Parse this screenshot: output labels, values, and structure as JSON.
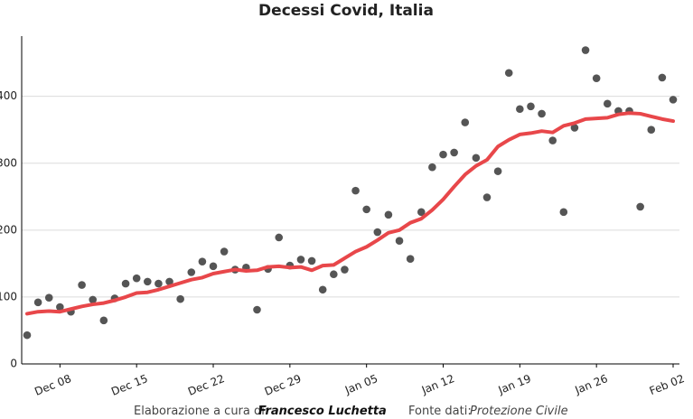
{
  "chart_data": {
    "type": "line",
    "title": "Decessi Covid, Italia",
    "x": [
      "Dec 05",
      "Dec 06",
      "Dec 07",
      "Dec 08",
      "Dec 09",
      "Dec 10",
      "Dec 11",
      "Dec 12",
      "Dec 13",
      "Dec 14",
      "Dec 15",
      "Dec 16",
      "Dec 17",
      "Dec 18",
      "Dec 19",
      "Dec 20",
      "Dec 21",
      "Dec 22",
      "Dec 23",
      "Dec 24",
      "Dec 25",
      "Dec 26",
      "Dec 27",
      "Dec 28",
      "Dec 29",
      "Dec 30",
      "Dec 31",
      "Jan 01",
      "Jan 02",
      "Jan 03",
      "Jan 04",
      "Jan 05",
      "Jan 06",
      "Jan 07",
      "Jan 08",
      "Jan 09",
      "Jan 10",
      "Jan 11",
      "Jan 12",
      "Jan 13",
      "Jan 14",
      "Jan 15",
      "Jan 16",
      "Jan 17",
      "Jan 18",
      "Jan 19",
      "Jan 20",
      "Jan 21",
      "Jan 22",
      "Jan 23",
      "Jan 24",
      "Jan 25",
      "Jan 26",
      "Jan 27",
      "Jan 28",
      "Jan 29",
      "Jan 30",
      "Jan 31",
      "Feb 01",
      "Feb 02"
    ],
    "xticks": [
      "Dec 08",
      "Dec 15",
      "Dec 22",
      "Dec 29",
      "Jan 05",
      "Jan 12",
      "Jan 19",
      "Jan 26",
      "Feb 02"
    ],
    "series": [
      {
        "mark": "points",
        "color": "#555555",
        "values": [
          43,
          92,
          99,
          85,
          78,
          118,
          96,
          65,
          98,
          120,
          128,
          123,
          120,
          123,
          97,
          137,
          153,
          146,
          168,
          141,
          144,
          81,
          142,
          189,
          147,
          156,
          154,
          111,
          134,
          141,
          259,
          231,
          197,
          223,
          184,
          157,
          227,
          294,
          313,
          316,
          361,
          308,
          249,
          288,
          435,
          381,
          385,
          374,
          334,
          227,
          353,
          469,
          427,
          389,
          378,
          378,
          235,
          350,
          428,
          395
        ]
      },
      {
        "mark": "line",
        "color": "#e8474a",
        "values": [
          75,
          78,
          79,
          78,
          82,
          86,
          89,
          91,
          95,
          100,
          106,
          107,
          111,
          116,
          121,
          126,
          129,
          135,
          138,
          141,
          139,
          140,
          145,
          146,
          144,
          145,
          140,
          147,
          148,
          158,
          168,
          175,
          185,
          196,
          200,
          211,
          217,
          230,
          246,
          265,
          283,
          296,
          305,
          325,
          335,
          343,
          345,
          348,
          346,
          356,
          360,
          366,
          367,
          368,
          373,
          375,
          374,
          370,
          366,
          363
        ]
      }
    ],
    "ylim": [
      0,
      490
    ],
    "yticks": [
      0,
      100,
      200,
      300,
      400
    ],
    "grid": true,
    "footer": {
      "credit_label": "Elaborazione a cura di:",
      "credit_name": "Francesco Luchetta",
      "source_label": "Fonte dati:",
      "source_name": "Protezione Civile"
    }
  }
}
